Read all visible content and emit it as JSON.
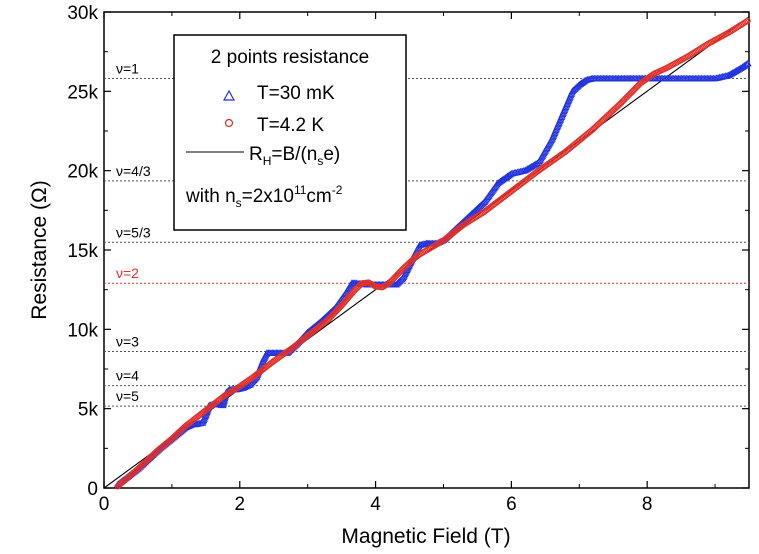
{
  "chart_data": {
    "type": "scatter",
    "xlabel": "Magnetic Field (T)",
    "ylabel": "Resistance (Ω)",
    "xlim": [
      0,
      9.5
    ],
    "ylim": [
      0,
      30000
    ],
    "xticks": [
      0,
      2,
      4,
      6,
      8
    ],
    "xtick_labels": [
      "0",
      "2",
      "4",
      "6",
      "8"
    ],
    "yticks": [
      0,
      5000,
      10000,
      15000,
      20000,
      25000,
      30000
    ],
    "ytick_labels": [
      "0",
      "5k",
      "10k",
      "15k",
      "20k",
      "25k",
      "30k"
    ],
    "legend": {
      "title": "2 points resistance",
      "position": "top-left",
      "fit_line_label": "R_H=B/(n_s e)",
      "note": "with n_s=2x10^11 cm^-2"
    },
    "filling_factor_lines": [
      {
        "label": "ν=1",
        "value": 25812,
        "color": "#555555"
      },
      {
        "label": "ν=4/3",
        "value": 19359,
        "color": "#555555"
      },
      {
        "label": "ν=5/3",
        "value": 15487,
        "color": "#555555"
      },
      {
        "label": "ν=2",
        "value": 12906,
        "color": "#e0332b"
      },
      {
        "label": "ν=3",
        "value": 8604,
        "color": "#555555"
      },
      {
        "label": "ν=4",
        "value": 6453,
        "color": "#555555"
      },
      {
        "label": "ν=5",
        "value": 5162,
        "color": "#555555"
      }
    ],
    "series": [
      {
        "name": "T=30 mK",
        "marker": "triangle",
        "color": "#2233dd",
        "x": [
          0.2,
          0.5,
          0.8,
          1.0,
          1.2,
          1.3,
          1.35,
          1.45,
          1.5,
          1.55,
          1.65,
          1.75,
          1.8,
          1.85,
          1.95,
          2.05,
          2.15,
          2.25,
          2.35,
          2.4,
          2.5,
          2.6,
          2.7,
          2.75,
          2.85,
          3.0,
          3.2,
          3.4,
          3.55,
          3.65,
          3.7,
          3.8,
          3.9,
          4.0,
          4.1,
          4.2,
          4.3,
          4.4,
          4.55,
          4.65,
          4.75,
          4.8,
          4.9,
          5.0,
          5.3,
          5.6,
          5.8,
          6.0,
          6.2,
          6.4,
          6.6,
          6.8,
          6.9,
          7.0,
          7.1,
          7.2,
          7.4,
          7.6,
          7.8,
          8.0,
          8.3,
          8.6,
          8.8,
          9.0,
          9.2,
          9.4,
          9.5
        ],
        "y": [
          200,
          1200,
          2400,
          3100,
          3800,
          4000,
          4000,
          4100,
          4600,
          5200,
          5300,
          5200,
          6000,
          6200,
          6200,
          6300,
          6500,
          7000,
          8100,
          8500,
          8500,
          8500,
          8500,
          8700,
          9100,
          9800,
          10500,
          11300,
          12200,
          12900,
          12900,
          12850,
          12800,
          12800,
          12800,
          12800,
          12800,
          13200,
          14500,
          15300,
          15400,
          15400,
          15400,
          15600,
          16800,
          18000,
          19200,
          19800,
          20000,
          20500,
          22000,
          24000,
          25000,
          25400,
          25700,
          25800,
          25800,
          25800,
          25800,
          25800,
          25800,
          25800,
          25800,
          25800,
          26000,
          26500,
          26800
        ]
      },
      {
        "name": "T=4.2 K",
        "marker": "circle",
        "color": "#e0332b",
        "x": [
          0.2,
          0.5,
          0.8,
          1.0,
          1.2,
          1.5,
          1.8,
          2.0,
          2.2,
          2.5,
          2.8,
          3.0,
          3.3,
          3.5,
          3.7,
          3.8,
          3.9,
          4.0,
          4.1,
          4.2,
          4.4,
          4.6,
          4.8,
          5.0,
          5.3,
          5.6,
          6.0,
          6.4,
          6.8,
          7.2,
          7.6,
          7.9,
          8.1,
          8.3,
          8.6,
          8.9,
          9.2,
          9.5
        ],
        "y": [
          100,
          1200,
          2400,
          3100,
          3900,
          4900,
          5900,
          6400,
          7000,
          8000,
          8900,
          9600,
          10600,
          11500,
          12500,
          12900,
          12950,
          12700,
          12650,
          12900,
          13800,
          14600,
          15100,
          15600,
          16600,
          17400,
          18700,
          20000,
          21200,
          22600,
          24200,
          25500,
          26100,
          26500,
          27200,
          28000,
          28700,
          29500
        ]
      }
    ],
    "fit_line": {
      "x": [
        0,
        9.5
      ],
      "y": [
        0,
        29700
      ],
      "color": "#000000"
    }
  }
}
